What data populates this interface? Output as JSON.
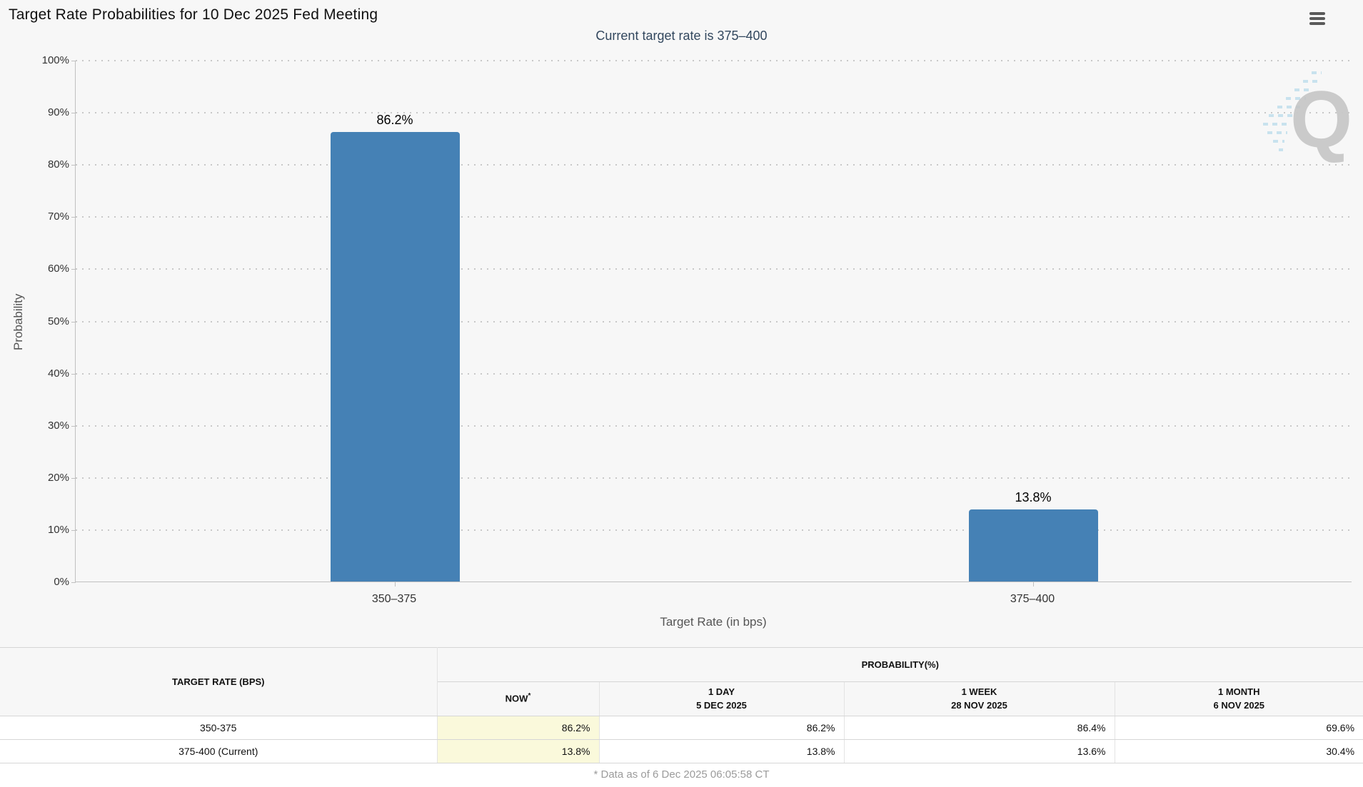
{
  "header": {
    "title": "Target Rate Probabilities for 10 Dec 2025 Fed Meeting",
    "menu_icon": "hamburger-menu"
  },
  "chart_data": {
    "type": "bar",
    "title": "Target Rate Probabilities for 10 Dec 2025 Fed Meeting",
    "subtitle": "Current target rate is 375–400",
    "categories": [
      "350–375",
      "375–400"
    ],
    "values": [
      86.2,
      13.8
    ],
    "value_labels": [
      "86.2%",
      "13.8%"
    ],
    "xlabel": "Target Rate (in bps)",
    "ylabel": "Probability",
    "ylim": [
      0,
      100
    ],
    "ytick_labels": [
      "0%",
      "10%",
      "20%",
      "30%",
      "40%",
      "50%",
      "60%",
      "70%",
      "80%",
      "90%",
      "100%"
    ],
    "grid": "dotted-horizontal",
    "legend_position": "none",
    "bar_color": "#4581B5",
    "subtitle_color": "#32475E"
  },
  "watermark": {
    "letter": "Q"
  },
  "table": {
    "first_col_header": "TARGET RATE (BPS)",
    "group_header": "PROBABILITY(%)",
    "now_header": "NOW",
    "now_sup": "*",
    "columns": [
      {
        "line1": "1 DAY",
        "line2": "5 DEC 2025"
      },
      {
        "line1": "1 WEEK",
        "line2": "28 NOV 2025"
      },
      {
        "line1": "1 MONTH",
        "line2": "6 NOV 2025"
      }
    ],
    "now_highlight": "#FAF9DB",
    "rows": [
      {
        "cells": [
          "350-375",
          "86.2%",
          "86.2%",
          "86.4%",
          "69.6%"
        ]
      },
      {
        "cells": [
          "375-400 (Current)",
          "13.8%",
          "13.8%",
          "13.6%",
          "30.4%"
        ]
      }
    ]
  },
  "footer": {
    "note": "* Data as of 6 Dec 2025 06:05:58 CT"
  }
}
